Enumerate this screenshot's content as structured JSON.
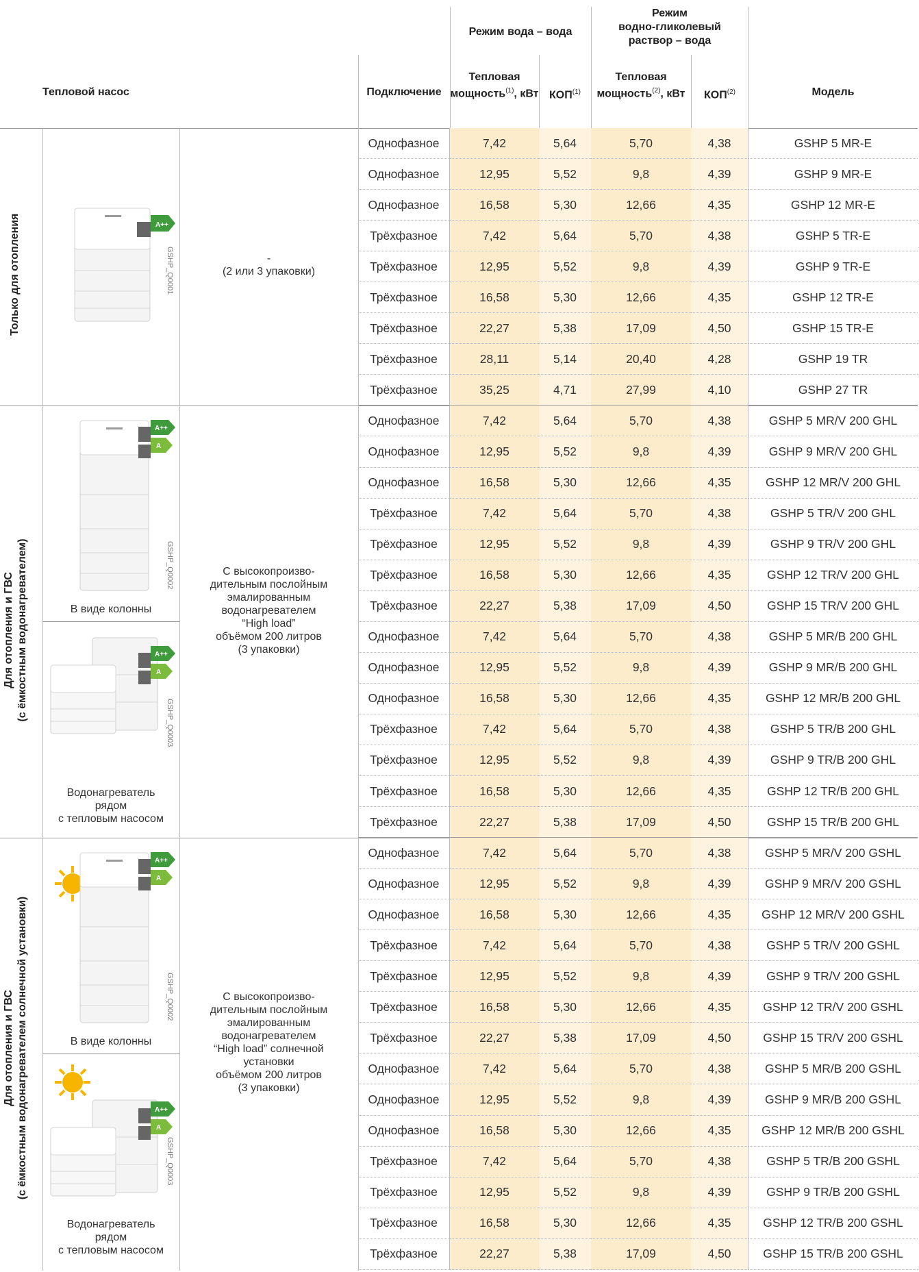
{
  "header": {
    "heat_pump": "Тепловой насос",
    "connection": "Подключение",
    "mode_water": "Режим вода – вода",
    "mode_glycol_l1": "Режим",
    "mode_glycol_l2": "водно-гликолевый",
    "mode_glycol_l3": "раствор – вода",
    "heat_power_l1": "Тепловая",
    "heat_power_l2": "мощность",
    "heat_power_unit": ", кВт",
    "sup1": "(1)",
    "sup2": "(2)",
    "cop": "КОП",
    "model": "Модель"
  },
  "groups": {
    "g1": {
      "label": "Только для отопления",
      "code": "GSHP_Q0001",
      "desc_l1": "-",
      "desc_l2": "(2 или 3 упаковки)",
      "badges": [
        "A++"
      ]
    },
    "g2": {
      "label_l1": "Для отопления и ГВС",
      "label_l2": "(с ёмкостным водонагревателем)",
      "column_caption": "В виде колонны",
      "column_code": "GSHP_Q0002",
      "side_caption_l1": "Водонагреватель",
      "side_caption_l2": "рядом",
      "side_caption_l3": "с тепловым насосом",
      "side_code": "GSHP_Q0003",
      "desc": [
        "С высокопроизво-",
        "дительным послойным",
        "эмалированным",
        "водонагревателем",
        "“High load”",
        "объёмом 200 литров",
        "(3 упаковки)"
      ],
      "badges": [
        "A++",
        "A"
      ]
    },
    "g3": {
      "label_l1": "Для отопления и ГВС",
      "label_l2": "(с ёмкостным водонагревателем солнечной установки)",
      "column_caption": "В виде колонны",
      "column_code": "GSHP_Q0002",
      "side_caption_l1": "Водонагреватель",
      "side_caption_l2": "рядом",
      "side_caption_l3": "с тепловым насосом",
      "side_code": "GSHP_Q0003",
      "desc": [
        "С высокопроизво-",
        "дительным послойным",
        "эмалированным",
        "водонагревателем",
        "“High load” солнечной",
        "установки",
        "объёмом 200 литров",
        "(3 упаковки)"
      ],
      "badges": [
        "A++",
        "A"
      ]
    }
  },
  "rows": [
    [
      "Однофазное",
      "7,42",
      "5,64",
      "5,70",
      "4,38",
      "GSHP 5 MR-E"
    ],
    [
      "Однофазное",
      "12,95",
      "5,52",
      "9,8",
      "4,39",
      "GSHP 9 MR-E"
    ],
    [
      "Однофазное",
      "16,58",
      "5,30",
      "12,66",
      "4,35",
      "GSHP 12 MR-E"
    ],
    [
      "Трёхфазное",
      "7,42",
      "5,64",
      "5,70",
      "4,38",
      "GSHP 5 TR-E"
    ],
    [
      "Трёхфазное",
      "12,95",
      "5,52",
      "9,8",
      "4,39",
      "GSHP 9 TR-E"
    ],
    [
      "Трёхфазное",
      "16,58",
      "5,30",
      "12,66",
      "4,35",
      "GSHP 12 TR-E"
    ],
    [
      "Трёхфазное",
      "22,27",
      "5,38",
      "17,09",
      "4,50",
      "GSHP 15 TR-E"
    ],
    [
      "Трёхфазное",
      "28,11",
      "5,14",
      "20,40",
      "4,28",
      "GSHP 19 TR"
    ],
    [
      "Трёхфазное",
      "35,25",
      "4,71",
      "27,99",
      "4,10",
      "GSHP 27 TR"
    ],
    [
      "Однофазное",
      "7,42",
      "5,64",
      "5,70",
      "4,38",
      "GSHP 5 MR/V 200 GHL"
    ],
    [
      "Однофазное",
      "12,95",
      "5,52",
      "9,8",
      "4,39",
      "GSHP 9 MR/V 200 GHL"
    ],
    [
      "Однофазное",
      "16,58",
      "5,30",
      "12,66",
      "4,35",
      "GSHP 12 MR/V 200 GHL"
    ],
    [
      "Трёхфазное",
      "7,42",
      "5,64",
      "5,70",
      "4,38",
      "GSHP 5 TR/V 200 GHL"
    ],
    [
      "Трёхфазное",
      "12,95",
      "5,52",
      "9,8",
      "4,39",
      "GSHP 9 TR/V 200 GHL"
    ],
    [
      "Трёхфазное",
      "16,58",
      "5,30",
      "12,66",
      "4,35",
      "GSHP 12 TR/V 200 GHL"
    ],
    [
      "Трёхфазное",
      "22,27",
      "5,38",
      "17,09",
      "4,50",
      "GSHP 15 TR/V 200 GHL"
    ],
    [
      "Однофазное",
      "7,42",
      "5,64",
      "5,70",
      "4,38",
      "GSHP 5 MR/B 200 GHL"
    ],
    [
      "Однофазное",
      "12,95",
      "5,52",
      "9,8",
      "4,39",
      "GSHP 9 MR/B 200 GHL"
    ],
    [
      "Однофазное",
      "16,58",
      "5,30",
      "12,66",
      "4,35",
      "GSHP 12 MR/B 200 GHL"
    ],
    [
      "Трёхфазное",
      "7,42",
      "5,64",
      "5,70",
      "4,38",
      "GSHP 5 TR/B 200 GHL"
    ],
    [
      "Трёхфазное",
      "12,95",
      "5,52",
      "9,8",
      "4,39",
      "GSHP 9 TR/B 200 GHL"
    ],
    [
      "Трёхфазное",
      "16,58",
      "5,30",
      "12,66",
      "4,35",
      "GSHP 12 TR/B 200 GHL"
    ],
    [
      "Трёхфазное",
      "22,27",
      "5,38",
      "17,09",
      "4,50",
      "GSHP 15 TR/B 200 GHL"
    ],
    [
      "Однофазное",
      "7,42",
      "5,64",
      "5,70",
      "4,38",
      "GSHP 5 MR/V 200 GSHL"
    ],
    [
      "Однофазное",
      "12,95",
      "5,52",
      "9,8",
      "4,39",
      "GSHP 9 MR/V 200 GSHL"
    ],
    [
      "Однофазное",
      "16,58",
      "5,30",
      "12,66",
      "4,35",
      "GSHP 12 MR/V 200 GSHL"
    ],
    [
      "Трёхфазное",
      "7,42",
      "5,64",
      "5,70",
      "4,38",
      "GSHP 5 TR/V 200 GSHL"
    ],
    [
      "Трёхфазное",
      "12,95",
      "5,52",
      "9,8",
      "4,39",
      "GSHP 9 TR/V 200 GSHL"
    ],
    [
      "Трёхфазное",
      "16,58",
      "5,30",
      "12,66",
      "4,35",
      "GSHP 12 TR/V 200 GSHL"
    ],
    [
      "Трёхфазное",
      "22,27",
      "5,38",
      "17,09",
      "4,50",
      "GSHP 15 TR/V 200 GSHL"
    ],
    [
      "Однофазное",
      "7,42",
      "5,64",
      "5,70",
      "4,38",
      "GSHP 5 MR/B 200 GSHL"
    ],
    [
      "Однофазное",
      "12,95",
      "5,52",
      "9,8",
      "4,39",
      "GSHP 9 MR/B 200 GSHL"
    ],
    [
      "Однофазное",
      "16,58",
      "5,30",
      "12,66",
      "4,35",
      "GSHP 12 MR/B 200 GSHL"
    ],
    [
      "Трёхфазное",
      "7,42",
      "5,64",
      "5,70",
      "4,38",
      "GSHP 5 TR/B 200 GSHL"
    ],
    [
      "Трёхфазное",
      "12,95",
      "5,52",
      "9,8",
      "4,39",
      "GSHP 9 TR/B 200 GSHL"
    ],
    [
      "Трёхфазное",
      "16,58",
      "5,30",
      "12,66",
      "4,35",
      "GSHP 12 TR/B 200 GSHL"
    ],
    [
      "Трёхфазное",
      "22,27",
      "5,38",
      "17,09",
      "4,50",
      "GSHP 15 TR/B 200 GSHL"
    ]
  ],
  "colors": {
    "power_fill": "#fdeccb",
    "cop_fill": "#fdf3df",
    "badge_dark": "#3f9b3c",
    "badge_light": "#7dbb3c",
    "sun": "#f7b500"
  }
}
